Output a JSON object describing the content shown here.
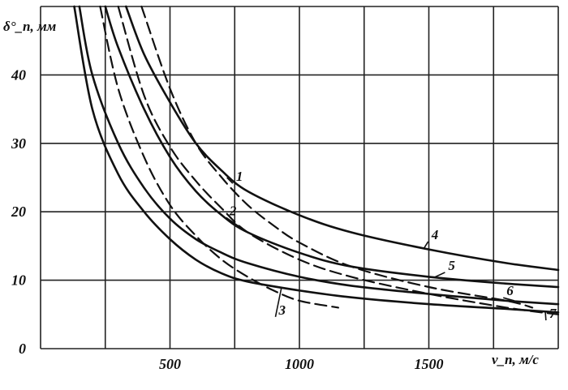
{
  "chart_data": {
    "type": "line",
    "title": "",
    "xlabel": "v_п, м/с",
    "ylabel": "δ°_п, мм",
    "xlim": [
      0,
      2000
    ],
    "ylim": [
      0,
      50
    ],
    "xticks": [
      "500",
      "1000",
      "1500"
    ],
    "yticks": [
      "0",
      "10",
      "20",
      "30",
      "40"
    ],
    "grid": true,
    "series": [
      {
        "name": "1",
        "dashed": true,
        "points": [
          [
            390,
            50
          ],
          [
            500,
            38
          ],
          [
            600,
            30
          ],
          [
            700,
            25
          ],
          [
            800,
            21
          ],
          [
            900,
            18
          ],
          [
            1000,
            15.5
          ],
          [
            1200,
            12
          ],
          [
            1500,
            9
          ],
          [
            1800,
            7
          ],
          [
            1900,
            6
          ]
        ]
      },
      {
        "name": "2",
        "dashed": true,
        "points": [
          [
            300,
            50
          ],
          [
            400,
            37
          ],
          [
            500,
            29.5
          ],
          [
            600,
            24.5
          ],
          [
            700,
            20.5
          ],
          [
            800,
            17
          ],
          [
            1000,
            13
          ],
          [
            1200,
            10.5
          ],
          [
            1500,
            8
          ],
          [
            1800,
            6
          ],
          [
            2000,
            5
          ]
        ]
      },
      {
        "name": "3",
        "dashed": true,
        "points": [
          [
            230,
            50
          ],
          [
            300,
            38
          ],
          [
            400,
            28
          ],
          [
            500,
            21
          ],
          [
            600,
            16.5
          ],
          [
            700,
            13
          ],
          [
            800,
            10.5
          ],
          [
            900,
            8.5
          ],
          [
            1000,
            7
          ],
          [
            1150,
            6
          ]
        ]
      },
      {
        "name": "4",
        "dashed": false,
        "points": [
          [
            330,
            50
          ],
          [
            400,
            43
          ],
          [
            500,
            36
          ],
          [
            600,
            30
          ],
          [
            700,
            26
          ],
          [
            800,
            23
          ],
          [
            1000,
            19.5
          ],
          [
            1200,
            17
          ],
          [
            1500,
            14.5
          ],
          [
            1800,
            12.5
          ],
          [
            2000,
            11.5
          ]
        ]
      },
      {
        "name": "5",
        "dashed": false,
        "points": [
          [
            250,
            50
          ],
          [
            300,
            44
          ],
          [
            400,
            35
          ],
          [
            500,
            28
          ],
          [
            600,
            23
          ],
          [
            700,
            19.5
          ],
          [
            800,
            17
          ],
          [
            1000,
            14
          ],
          [
            1200,
            12
          ],
          [
            1500,
            10.5
          ],
          [
            1800,
            9.5
          ],
          [
            2000,
            9
          ]
        ]
      },
      {
        "name": "6",
        "dashed": false,
        "points": [
          [
            150,
            50
          ],
          [
            200,
            40
          ],
          [
            300,
            30
          ],
          [
            400,
            23.5
          ],
          [
            500,
            19
          ],
          [
            600,
            16
          ],
          [
            700,
            14
          ],
          [
            800,
            12.5
          ],
          [
            1000,
            10.5
          ],
          [
            1200,
            9.2
          ],
          [
            1500,
            8
          ],
          [
            1800,
            7
          ],
          [
            2000,
            6.5
          ]
        ]
      },
      {
        "name": "7",
        "dashed": false,
        "points": [
          [
            130,
            50
          ],
          [
            200,
            35
          ],
          [
            300,
            25.5
          ],
          [
            400,
            20
          ],
          [
            500,
            16
          ],
          [
            600,
            13
          ],
          [
            700,
            11
          ],
          [
            800,
            9.8
          ],
          [
            1000,
            8.5
          ],
          [
            1200,
            7.5
          ],
          [
            1500,
            6.5
          ],
          [
            1800,
            5.8
          ],
          [
            2000,
            5.3
          ]
        ]
      }
    ]
  }
}
